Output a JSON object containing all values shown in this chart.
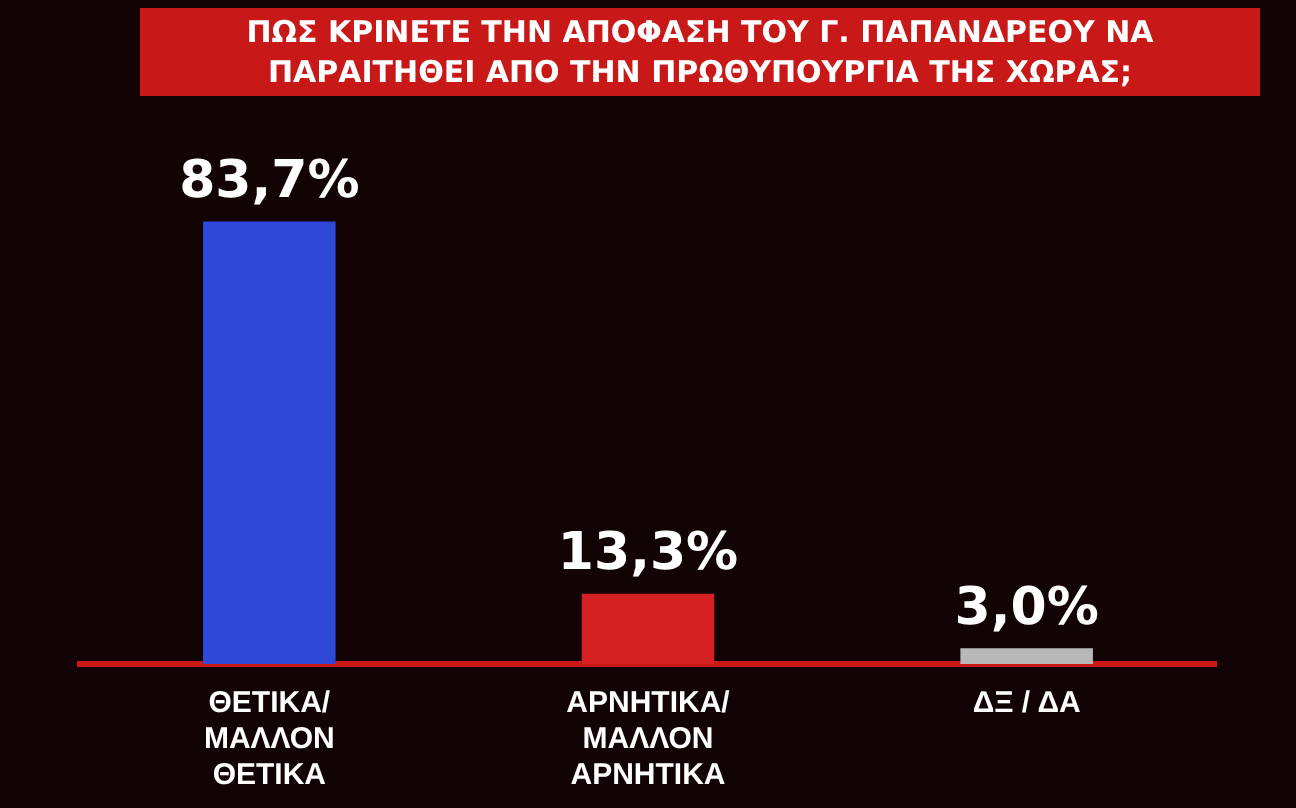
{
  "chart_data": {
    "type": "bar",
    "title": "ΠΩΣ ΚΡΙΝΕΤΕ ΤΗΝ ΑΠΟΦΑΣΗ ΤΟΥ Γ. ΠΑΠΑΝΔΡΕΟΥ ΝΑ ΠΑΡΑΙΤΗΘΕΙ ΑΠΟ ΤΗΝ ΠΡΩΘΥΠΟΥΡΓΙΑ ΤΗΣ ΧΩΡΑΣ;",
    "categories": [
      "ΘΕΤΙΚΑ/ ΜΑΛΛΟΝ ΘΕΤΙΚΑ",
      "ΑΡΝΗΤΙΚΑ/ ΜΑΛΛΟΝ ΑΡΝΗΤΙΚΑ",
      "ΔΞ / ΔΑ"
    ],
    "values": [
      83.7,
      13.3,
      3.0
    ],
    "colors": [
      "#3048d8",
      "#d42020",
      "#b8b8b8"
    ],
    "value_labels": [
      "83,7%",
      "13,3%",
      "3,0%"
    ]
  }
}
